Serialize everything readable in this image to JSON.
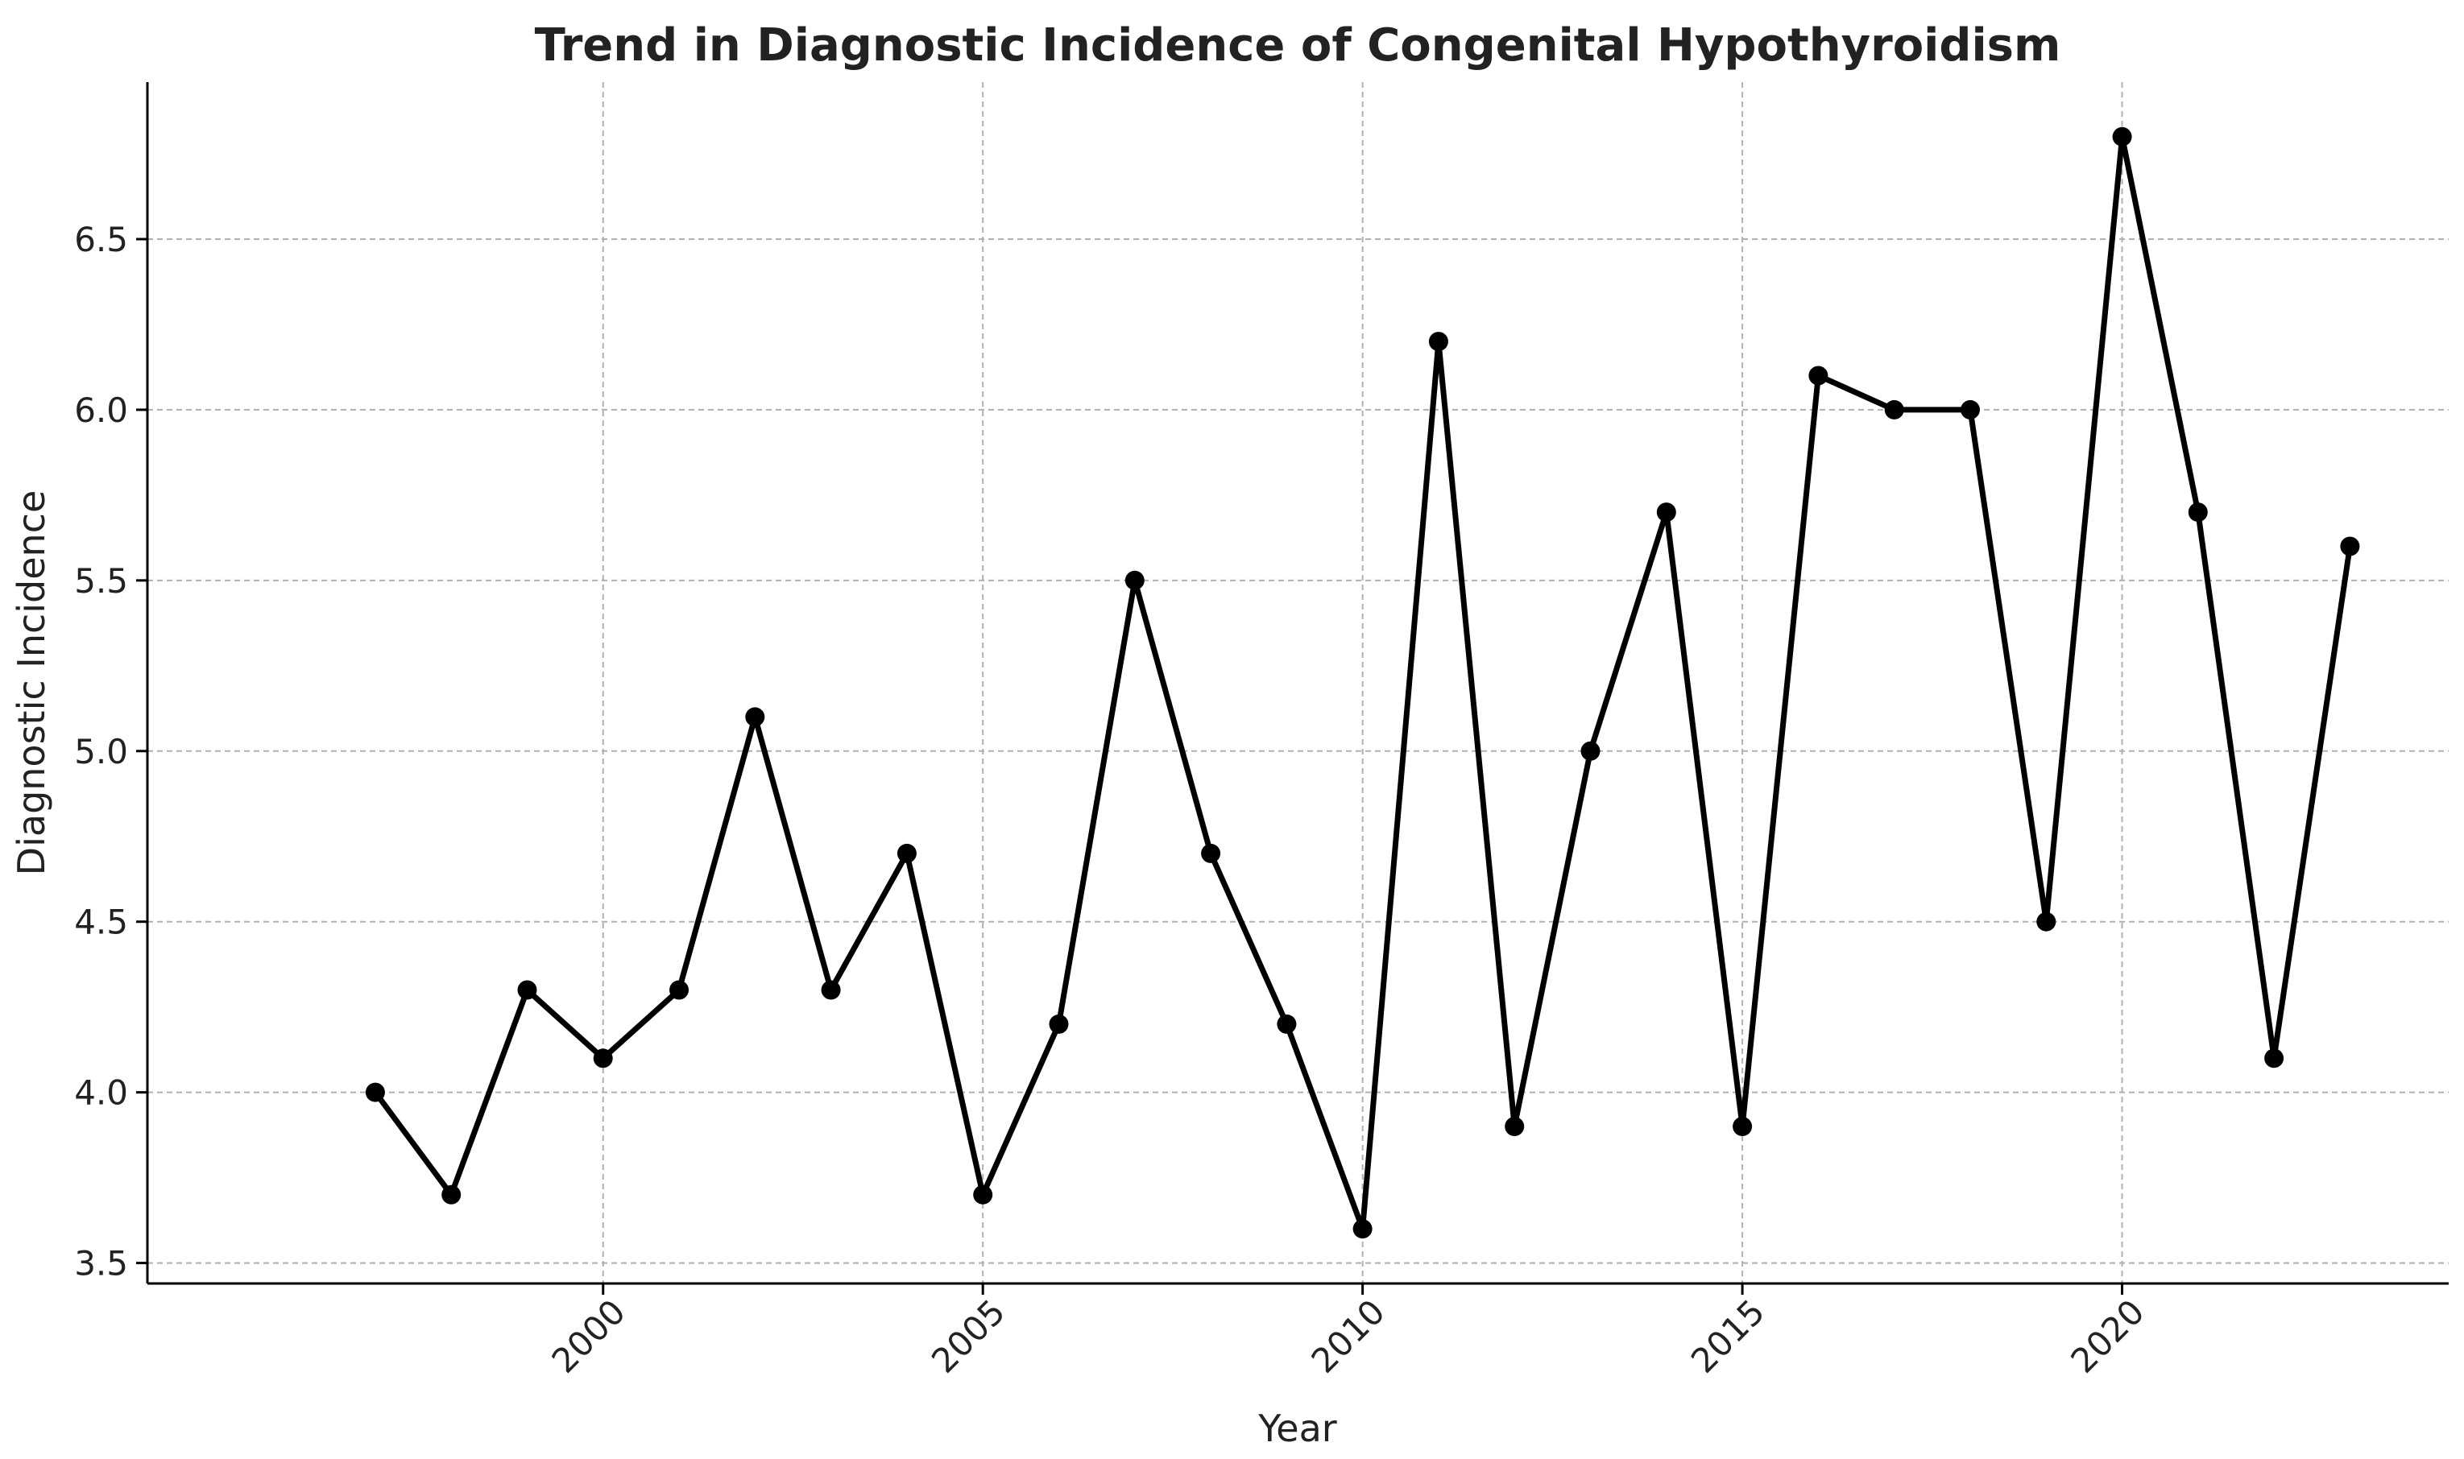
{
  "chart_data": {
    "type": "line",
    "title": "Trend in Diagnostic Incidence of Congenital Hypothyroidism",
    "xlabel": "Year",
    "ylabel": "Diagnostic Incidence",
    "xlim": [
      1994,
      2024.3
    ],
    "ylim": [
      3.44,
      6.96
    ],
    "xticks": [
      2000,
      2005,
      2010,
      2015,
      2020
    ],
    "xtick_labels": [
      "2000",
      "2005",
      "2010",
      "2015",
      "2020"
    ],
    "yticks": [
      3.5,
      4.0,
      4.5,
      5.0,
      5.5,
      6.0,
      6.5
    ],
    "ytick_labels": [
      "3.5",
      "4.0",
      "4.5",
      "5.0",
      "5.5",
      "6.0",
      "6.5"
    ],
    "grid": true,
    "line_color": "#000000",
    "x": [
      1997,
      1998,
      1999,
      2000,
      2001,
      2002,
      2003,
      2004,
      2005,
      2006,
      2007,
      2008,
      2009,
      2010,
      2011,
      2012,
      2013,
      2014,
      2015,
      2016,
      2017,
      2018,
      2019,
      2020,
      2021,
      2022,
      2023
    ],
    "values": [
      4.0,
      3.7,
      4.3,
      4.1,
      4.3,
      5.1,
      4.3,
      4.7,
      3.7,
      4.2,
      5.5,
      4.7,
      4.2,
      3.6,
      6.2,
      3.9,
      5.0,
      5.7,
      3.9,
      6.1,
      6.0,
      6.0,
      4.5,
      6.8,
      5.7,
      4.1,
      5.6
    ]
  }
}
